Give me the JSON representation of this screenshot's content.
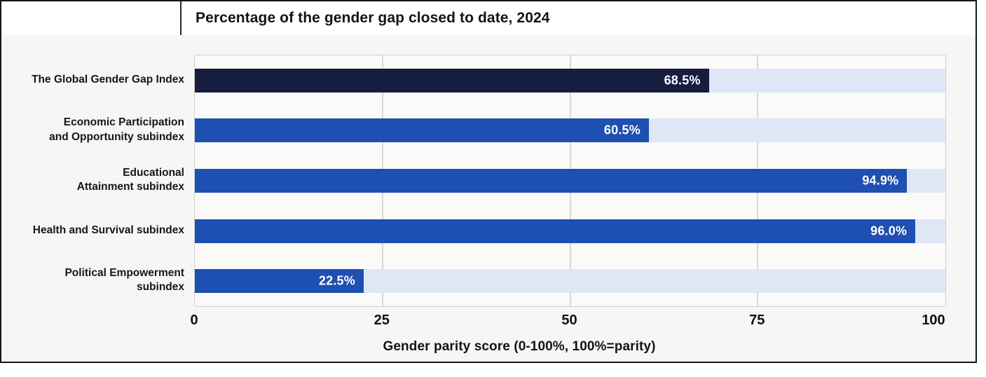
{
  "title": "Percentage of the gender gap closed to date, 2024",
  "colors": {
    "highlight_bar": "#161d3f",
    "bar": "#1e4fb2",
    "track": "#dfe7f7",
    "value_text": "#ffffff",
    "gridline": "#d9d9d9"
  },
  "chart_data": {
    "type": "bar",
    "orientation": "horizontal",
    "title": "Percentage of the gender gap closed to date, 2024",
    "categories": [
      "The Global Gender Gap Index",
      "Economic Participation\nand Opportunity subindex",
      "Educational\nAttainment subindex",
      "Health and Survival subindex",
      "Political Empowerment\nsubindex"
    ],
    "values": [
      68.5,
      60.5,
      94.9,
      96.0,
      22.5
    ],
    "value_labels": [
      "68.5%",
      "60.5%",
      "94.9%",
      "96.0%",
      "22.5%"
    ],
    "bar_color_roles": [
      "highlight",
      "normal",
      "normal",
      "normal",
      "normal"
    ],
    "xlabel": "Gender parity score (0-100%, 100%=parity)",
    "xlim": [
      0,
      100
    ],
    "xticks": [
      "0",
      "25",
      "50",
      "75",
      "100"
    ],
    "gridline_positions": [
      25,
      50,
      75
    ],
    "grid": true,
    "legend": false
  }
}
